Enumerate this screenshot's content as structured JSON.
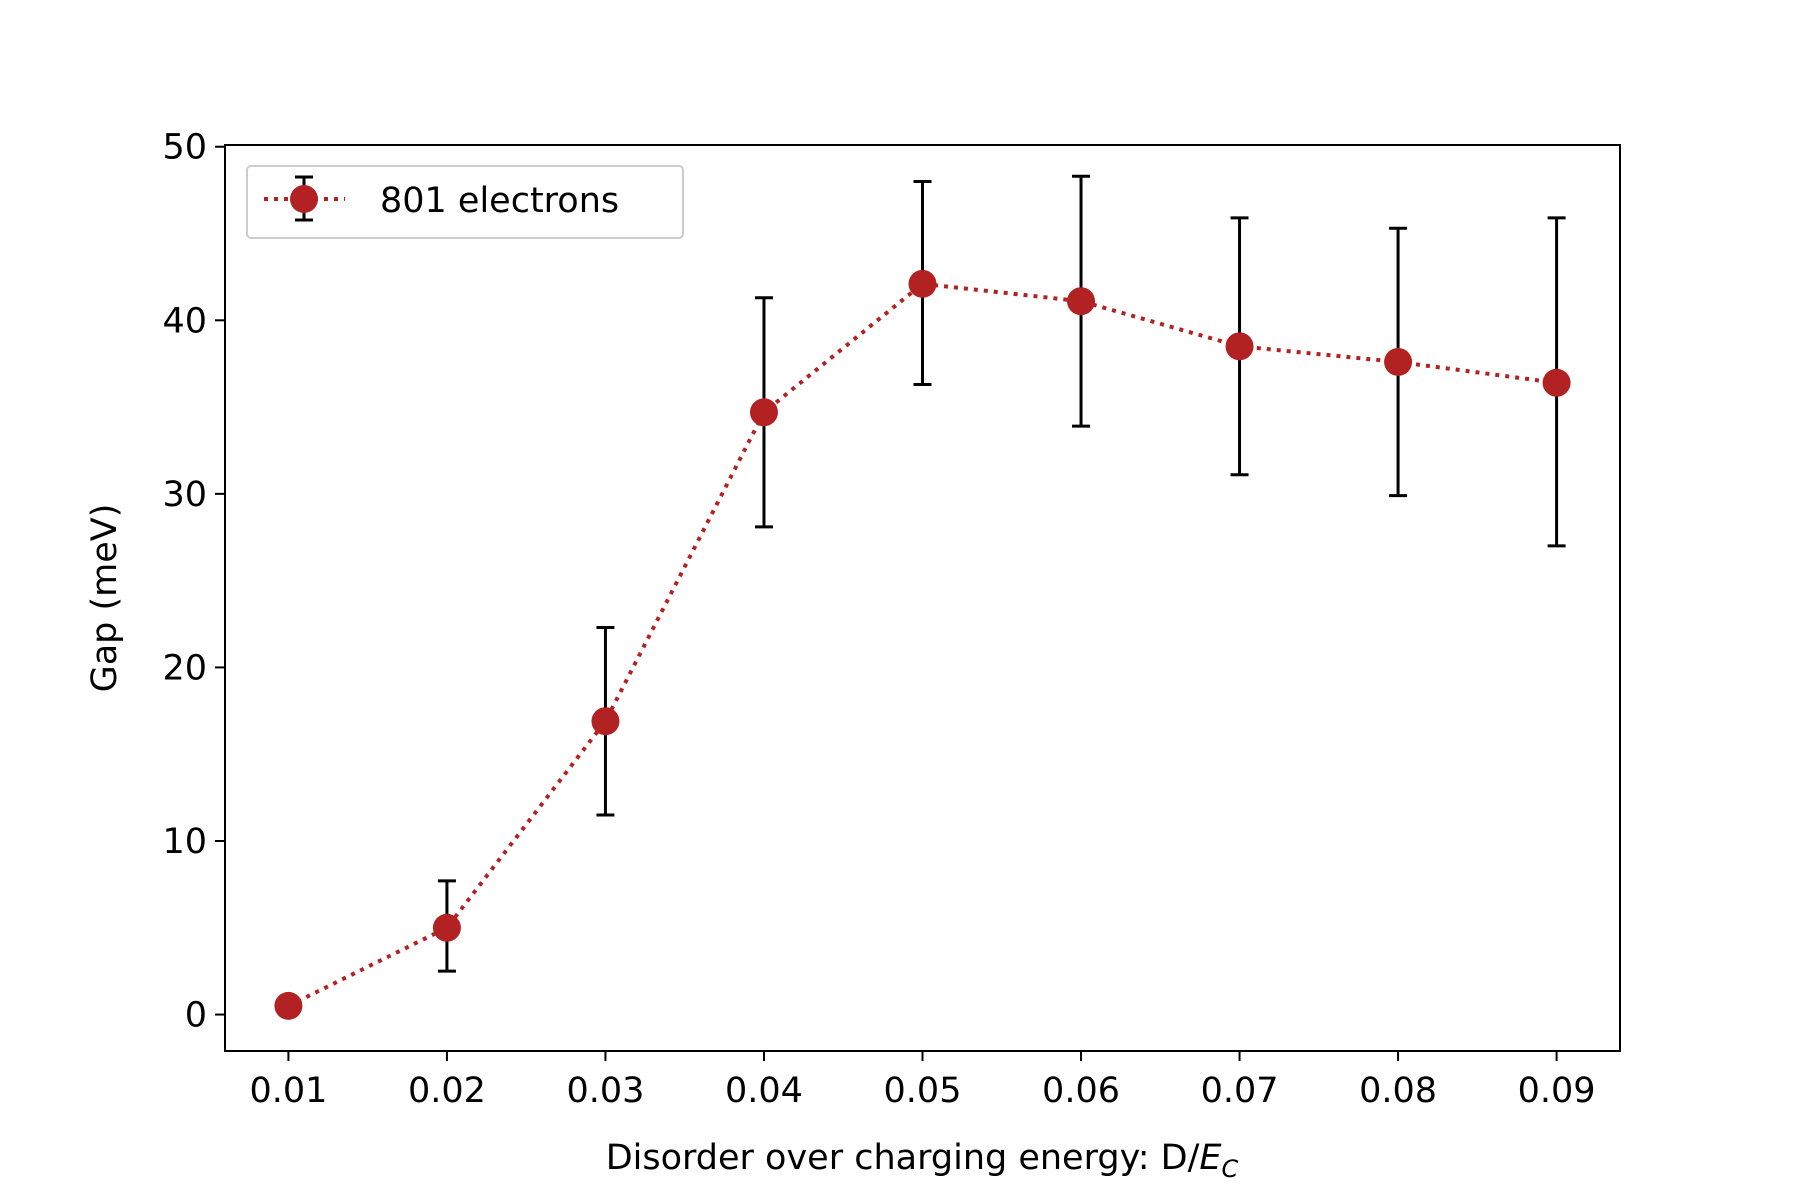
{
  "chart_data": {
    "type": "line",
    "xlabel_main": "Disorder over charging energy: D/",
    "xlabel_italic": "E",
    "xlabel_sub": "C",
    "ylabel": "Gap (meV)",
    "xlim": [
      0.006,
      0.094
    ],
    "ylim": [
      -2.1,
      50.1
    ],
    "xticks": [
      "0.01",
      "0.02",
      "0.03",
      "0.04",
      "0.05",
      "0.06",
      "0.07",
      "0.08",
      "0.09"
    ],
    "yticks": [
      "0",
      "10",
      "20",
      "30",
      "40",
      "50"
    ],
    "grid": false,
    "legend_position": "upper-left",
    "series": [
      {
        "name": "801 electrons",
        "color": "#b22222",
        "errorbar_color": "#000000",
        "line_style": "dotted",
        "x": [
          0.01,
          0.02,
          0.03,
          0.04,
          0.05,
          0.06,
          0.07,
          0.08,
          0.09
        ],
        "y": [
          0.5,
          5.0,
          16.9,
          34.7,
          42.1,
          41.1,
          38.5,
          37.6,
          36.4
        ],
        "yerr_low": [
          0.5,
          2.5,
          5.4,
          6.6,
          5.8,
          7.2,
          7.4,
          7.7,
          9.4
        ],
        "yerr_high": [
          0.0,
          2.7,
          5.4,
          6.6,
          5.9,
          7.2,
          7.4,
          7.7,
          9.5
        ]
      }
    ]
  }
}
